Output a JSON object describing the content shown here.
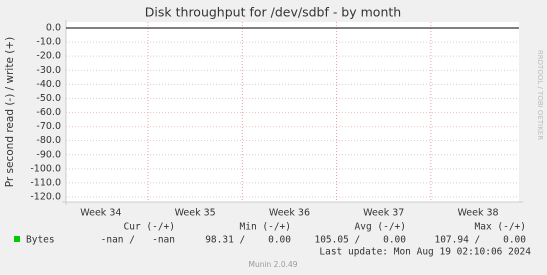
{
  "chart_data": {
    "type": "line",
    "title": "Disk throughput for /dev/sdbf - by month",
    "y_label": "Pr second read (-) / write (+)",
    "categories": [
      "Week 34",
      "Week 35",
      "Week 36",
      "Week 37",
      "Week 38"
    ],
    "series": [
      {
        "name": "Bytes",
        "color": "#00cc00",
        "values": [
          null,
          null,
          null,
          null,
          null
        ]
      }
    ],
    "ylim": [
      -120,
      0
    ],
    "yticks": [
      {
        "value": 0,
        "label": "0.0"
      },
      {
        "value": -10,
        "label": "-10.0"
      },
      {
        "value": -20,
        "label": "-20.0"
      },
      {
        "value": -30,
        "label": "-30.0"
      },
      {
        "value": -40,
        "label": "-40.0"
      },
      {
        "value": -50,
        "label": "-50.0"
      },
      {
        "value": -60,
        "label": "-60.0"
      },
      {
        "value": -70,
        "label": "-70.0"
      },
      {
        "value": -80,
        "label": "-80.0"
      },
      {
        "value": -90,
        "label": "-90.0"
      },
      {
        "value": -100,
        "label": "-100.0"
      },
      {
        "value": -110,
        "label": "-110.0"
      },
      {
        "value": -120,
        "label": "-120.0"
      }
    ],
    "grid": true,
    "legend_headers": [
      "Cur (-/+)",
      "Min (-/+)",
      "Avg (-/+)",
      "Max (-/+)"
    ],
    "legend_stats": [
      "-nan /   -nan",
      "98.31 /    0.00",
      "105.05 /    0.00",
      "107.94 /    0.00"
    ],
    "last_update": "Last update: Mon Aug 19 02:10:06 2024",
    "watermark": "RRDTOOL / TOBI OETIKER",
    "footer": "Munin 2.0.49"
  }
}
